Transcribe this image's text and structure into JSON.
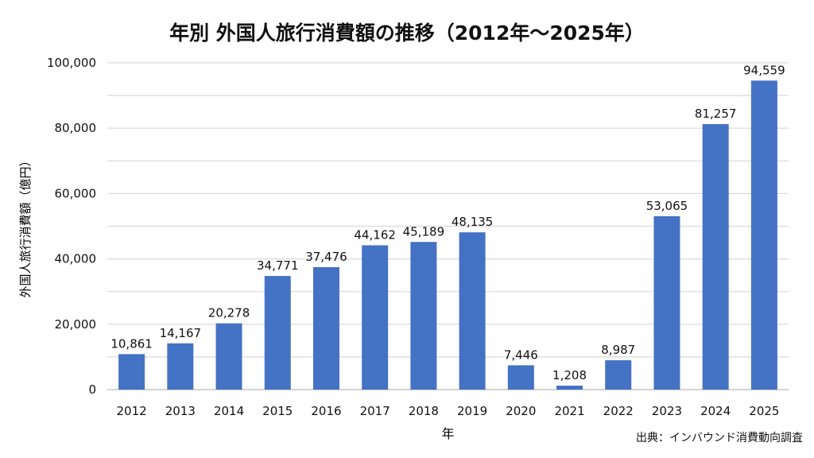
{
  "chart_data": {
    "type": "bar",
    "title": "年別 外国人旅行消費額の推移（2012年〜2025年）",
    "xlabel": "年",
    "ylabel": "外国人旅行消費額（億円）",
    "source": "出典：インバウンド消費動向調査",
    "categories": [
      "2012",
      "2013",
      "2014",
      "2015",
      "2016",
      "2017",
      "2018",
      "2019",
      "2020",
      "2021",
      "2022",
      "2023",
      "2024",
      "2025"
    ],
    "values": [
      10861,
      14167,
      20278,
      34771,
      37476,
      44162,
      45189,
      48135,
      7446,
      1208,
      8987,
      53065,
      81257,
      94559
    ],
    "value_labels": [
      "10,861",
      "14,167",
      "20,278",
      "34,771",
      "37,476",
      "44,162",
      "45,189",
      "48,135",
      "7,446",
      "1,208",
      "8,987",
      "53,065",
      "81,257",
      "94,559"
    ],
    "ylim": [
      0,
      100000
    ],
    "yticks": [
      0,
      20000,
      40000,
      60000,
      80000,
      100000
    ],
    "ytick_labels": [
      "0",
      "20,000",
      "40,000",
      "60,000",
      "80,000",
      "100,000"
    ],
    "grid": true,
    "grid_minor_step": 10000,
    "legend": "none",
    "bar_color": "#4472C4"
  }
}
